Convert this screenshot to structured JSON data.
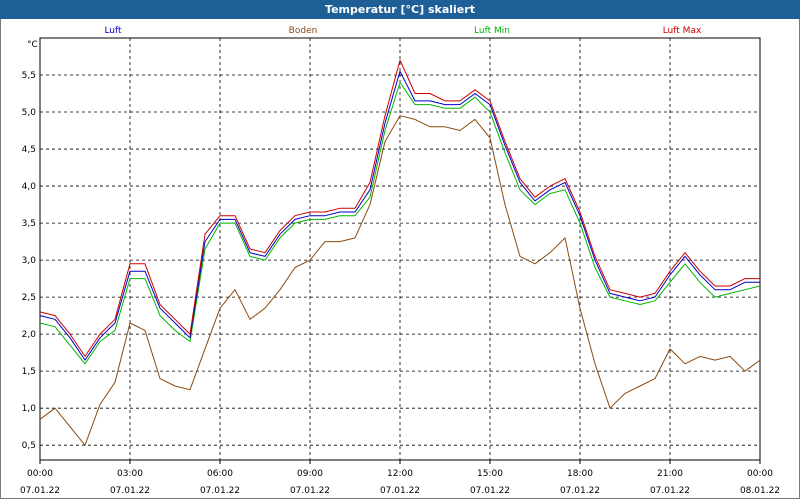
{
  "window_title": "Temperatur [°C] skaliert",
  "colors": {
    "titlebar": "#1f5f98",
    "luft": "#0000cc",
    "boden": "#8b4a0e",
    "luft_min": "#00b400",
    "luft_max": "#cc0000"
  },
  "chart_data": {
    "type": "line",
    "title": "Temperatur [°C] skaliert",
    "ylabel": "°C",
    "xlabel": "",
    "ylim": [
      0.3,
      6.0
    ],
    "yticks": [
      0.5,
      1.0,
      1.5,
      2.0,
      2.5,
      3.0,
      3.5,
      4.0,
      4.5,
      5.0,
      5.5
    ],
    "ytick_labels": [
      "0,5",
      "1,0",
      "1,5",
      "2,0",
      "2,5",
      "3,0",
      "3,5",
      "4,0",
      "4,5",
      "5,0",
      "5,5"
    ],
    "xlim": [
      0,
      24
    ],
    "xticks": [
      {
        "x": 0,
        "time": "00:00",
        "date": "07.01.22"
      },
      {
        "x": 3,
        "time": "03:00",
        "date": "07.01.22"
      },
      {
        "x": 6,
        "time": "06:00",
        "date": "07.01.22"
      },
      {
        "x": 9,
        "time": "09:00",
        "date": "07.01.22"
      },
      {
        "x": 12,
        "time": "12:00",
        "date": "07.01.22"
      },
      {
        "x": 15,
        "time": "15:00",
        "date": "07.01.22"
      },
      {
        "x": 18,
        "time": "18:00",
        "date": "07.01.22"
      },
      {
        "x": 21,
        "time": "21:00",
        "date": "07.01.22"
      },
      {
        "x": 24,
        "time": "00:00",
        "date": "08.01.22"
      }
    ],
    "grid": true,
    "x": [
      0,
      0.5,
      1,
      1.5,
      2,
      2.5,
      3,
      3.5,
      4,
      4.5,
      5,
      5.5,
      6,
      6.5,
      7,
      7.5,
      8,
      8.5,
      9,
      9.5,
      10,
      10.5,
      11,
      11.5,
      12,
      12.5,
      13,
      13.5,
      14,
      14.5,
      15,
      15.5,
      16,
      16.5,
      17,
      17.5,
      18,
      18.5,
      19,
      19.5,
      20,
      20.5,
      21,
      21.5,
      22,
      22.5,
      23,
      23.5,
      24
    ],
    "series": [
      {
        "name": "Luft",
        "color_key": "luft",
        "values": [
          2.25,
          2.2,
          1.95,
          1.65,
          1.95,
          2.15,
          2.85,
          2.85,
          2.35,
          2.15,
          1.95,
          3.25,
          3.55,
          3.55,
          3.1,
          3.05,
          3.35,
          3.55,
          3.6,
          3.6,
          3.65,
          3.65,
          3.95,
          4.85,
          5.55,
          5.15,
          5.15,
          5.1,
          5.1,
          5.25,
          5.1,
          4.55,
          4.05,
          3.8,
          3.95,
          4.05,
          3.6,
          3.0,
          2.55,
          2.5,
          2.45,
          2.5,
          2.8,
          3.05,
          2.8,
          2.6,
          2.6,
          2.7,
          2.7
        ]
      },
      {
        "name": "Boden",
        "color_key": "boden",
        "values": [
          0.85,
          1.0,
          0.75,
          0.5,
          1.05,
          1.35,
          2.15,
          2.05,
          1.4,
          1.3,
          1.25,
          1.8,
          2.35,
          2.6,
          2.2,
          2.35,
          2.6,
          2.9,
          3.0,
          3.25,
          3.25,
          3.3,
          3.75,
          4.6,
          4.95,
          4.9,
          4.8,
          4.8,
          4.75,
          4.9,
          4.65,
          3.75,
          3.05,
          2.95,
          3.1,
          3.3,
          2.35,
          1.6,
          1.0,
          1.2,
          1.3,
          1.4,
          1.8,
          1.6,
          1.7,
          1.65,
          1.7,
          1.5,
          1.65
        ]
      },
      {
        "name": "Luft Min",
        "color_key": "luft_min",
        "values": [
          2.15,
          2.1,
          1.85,
          1.6,
          1.9,
          2.05,
          2.75,
          2.75,
          2.25,
          2.05,
          1.9,
          3.15,
          3.5,
          3.5,
          3.05,
          3.0,
          3.3,
          3.5,
          3.55,
          3.55,
          3.6,
          3.6,
          3.85,
          4.75,
          5.4,
          5.1,
          5.1,
          5.05,
          5.05,
          5.2,
          5.0,
          4.45,
          3.95,
          3.75,
          3.9,
          3.95,
          3.5,
          2.9,
          2.5,
          2.45,
          2.4,
          2.45,
          2.7,
          2.95,
          2.7,
          2.5,
          2.55,
          2.6,
          2.65
        ]
      },
      {
        "name": "Luft Max",
        "color_key": "luft_max",
        "values": [
          2.3,
          2.25,
          2.0,
          1.7,
          2.0,
          2.2,
          2.95,
          2.95,
          2.4,
          2.2,
          2.0,
          3.35,
          3.6,
          3.6,
          3.15,
          3.1,
          3.4,
          3.6,
          3.65,
          3.65,
          3.7,
          3.7,
          4.05,
          4.95,
          5.7,
          5.25,
          5.25,
          5.15,
          5.15,
          5.3,
          5.15,
          4.6,
          4.1,
          3.85,
          4.0,
          4.1,
          3.65,
          3.05,
          2.6,
          2.55,
          2.5,
          2.55,
          2.85,
          3.1,
          2.85,
          2.65,
          2.65,
          2.75,
          2.75
        ]
      }
    ]
  }
}
